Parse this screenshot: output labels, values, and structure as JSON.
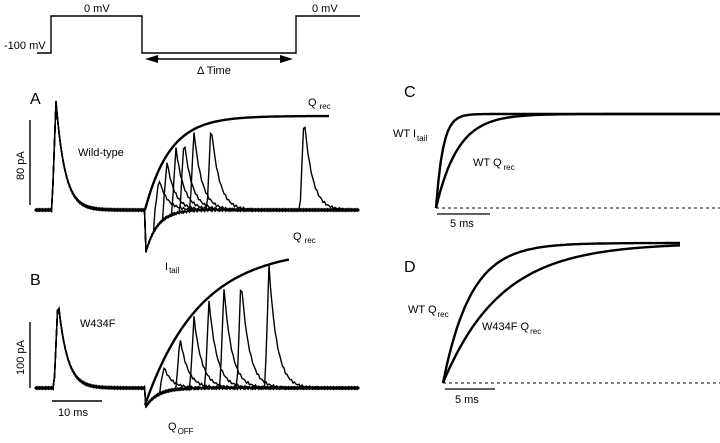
{
  "protocol": {
    "holding": "-100 mV",
    "step1": "0 mV",
    "step2": "0 mV",
    "interval": "Δ Time"
  },
  "panel_a": {
    "letter": "A",
    "name": "Wild-type",
    "scale_y": "80 pA",
    "q_rec": "Q",
    "q_rec_sub": "rec",
    "i_tail": "I",
    "i_tail_sub": "tail"
  },
  "panel_b": {
    "letter": "B",
    "name": "W434F",
    "scale_y": "100 pA",
    "scale_x": "10 ms",
    "q_rec": "Q",
    "q_rec_sub": "rec",
    "q_off": "Q",
    "q_off_sub": "OFF"
  },
  "panel_c": {
    "letter": "C",
    "itail_label": "WT  I",
    "itail_sub": "tail",
    "qrec_label": "WT  Q",
    "qrec_sub": "rec",
    "scale_x": "5 ms"
  },
  "panel_d": {
    "letter": "D",
    "wt_label": "WT Q",
    "wt_sub": "rec",
    "mut_label": "W434F Q",
    "mut_sub": "rec",
    "scale_x": "5 ms"
  }
}
